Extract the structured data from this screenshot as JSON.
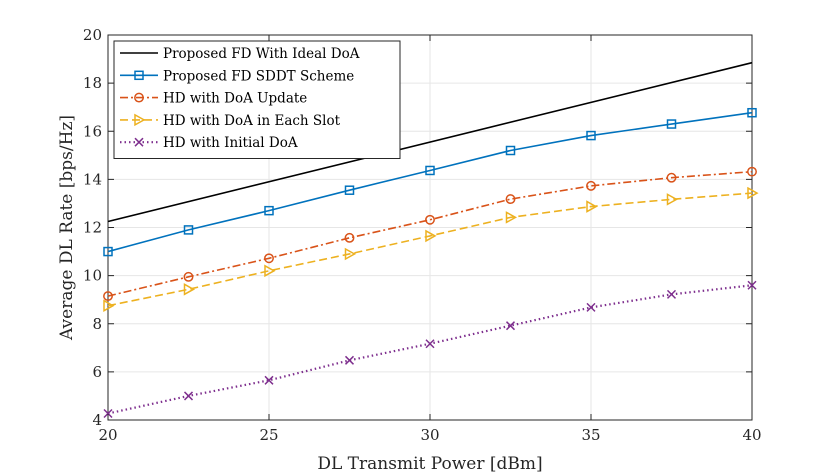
{
  "chart_data": {
    "type": "line",
    "title": "",
    "xlabel": "DL Transmit Power [dBm]",
    "ylabel": "Average DL Rate [bps/Hz]",
    "xlim": [
      20,
      40
    ],
    "ylim": [
      4,
      20
    ],
    "xticks": [
      20,
      25,
      30,
      35,
      40
    ],
    "yticks": [
      4,
      6,
      8,
      10,
      12,
      14,
      16,
      18,
      20
    ],
    "grid": true,
    "legend_position": "top-left",
    "series": [
      {
        "name": "Proposed FD With Ideal DoA",
        "color": "#000000",
        "dash": "solid",
        "marker": "none",
        "x": [
          20,
          40
        ],
        "values": [
          12.25,
          18.85
        ]
      },
      {
        "name": "Proposed FD SDDT Scheme",
        "color": "#0072BD",
        "dash": "solid",
        "marker": "square",
        "x": [
          20,
          22.5,
          25,
          27.5,
          30,
          32.5,
          35,
          37.5,
          40
        ],
        "values": [
          11.0,
          11.9,
          12.7,
          13.55,
          14.37,
          15.2,
          15.82,
          16.3,
          16.77
        ]
      },
      {
        "name": "HD with DoA Update",
        "color": "#D95319",
        "dash": "dashdot",
        "marker": "circle",
        "x": [
          20,
          22.5,
          25,
          27.5,
          30,
          32.5,
          35,
          37.5,
          40
        ],
        "values": [
          9.15,
          9.95,
          10.72,
          11.57,
          12.32,
          13.18,
          13.73,
          14.07,
          14.32
        ]
      },
      {
        "name": "HD with DoA in Each Slot",
        "color": "#EDB120",
        "dash": "dashed",
        "marker": "triangle-right",
        "x": [
          20,
          22.5,
          25,
          27.5,
          30,
          32.5,
          35,
          37.5,
          40
        ],
        "values": [
          8.75,
          9.43,
          10.2,
          10.9,
          11.65,
          12.42,
          12.87,
          13.17,
          13.43
        ]
      },
      {
        "name": "HD with Initial DoA",
        "color": "#7E2F8E",
        "dash": "dotted",
        "marker": "x",
        "x": [
          20,
          22.5,
          25,
          27.5,
          30,
          32.5,
          35,
          37.5,
          40
        ],
        "values": [
          4.27,
          5.0,
          5.65,
          6.48,
          7.17,
          7.92,
          8.68,
          9.22,
          9.6
        ]
      }
    ]
  }
}
